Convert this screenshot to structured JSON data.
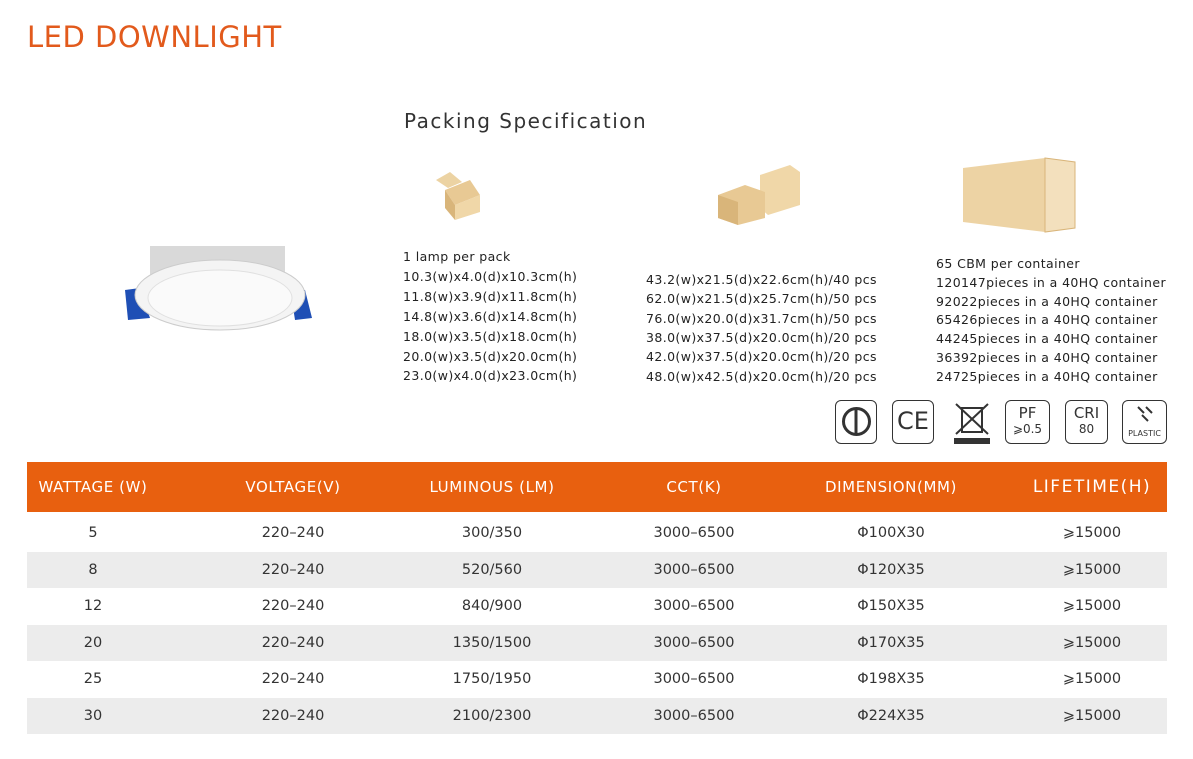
{
  "title": "LED DOWNLIGHT",
  "packing": {
    "title": "Packing Specification",
    "columns": [
      {
        "lines": [
          "1 lamp per pack",
          "10.3(w)x4.0(d)x10.3cm(h)",
          "11.8(w)x3.9(d)x11.8cm(h)",
          "14.8(w)x3.6(d)x14.8cm(h)",
          "18.0(w)x3.5(d)x18.0cm(h)",
          "20.0(w)x3.5(d)x20.0cm(h)",
          "23.0(w)x4.0(d)x23.0cm(h)"
        ]
      },
      {
        "lines": [
          "43.2(w)x21.5(d)x22.6cm(h)/40 pcs",
          "62.0(w)x21.5(d)x25.7cm(h)/50 pcs",
          "76.0(w)x20.0(d)x31.7cm(h)/50 pcs",
          "38.0(w)x37.5(d)x20.0cm(h)/20 pcs",
          "42.0(w)x37.5(d)x20.0cm(h)/20 pcs",
          "48.0(w)x42.5(d)x20.0cm(h)/20 pcs"
        ]
      },
      {
        "lines": [
          "65 CBM per container",
          "120147pieces in a 40HQ container",
          "92022pieces in a 40HQ container",
          "65426pieces in a 40HQ container",
          "44245pieces in a 40HQ container",
          "36392pieces in a 40HQ container",
          "24725pieces in a 40HQ container"
        ]
      }
    ]
  },
  "badges": {
    "ce": "CE",
    "pf": [
      "PF",
      "⩾0.5"
    ],
    "cri": [
      "CRI",
      "80"
    ],
    "plastic": "PLASTIC"
  },
  "table": {
    "headers": [
      "WATTAGE (W)",
      "VOLTAGE(V)",
      "LUMINOUS (LM)",
      "CCT(K)",
      "DIMENSION(MM)",
      "LIFETIME(H)"
    ],
    "rows": [
      [
        "5",
        "220–240",
        "300/350",
        "3000–6500",
        "Φ100X30",
        "⩾15000"
      ],
      [
        "8",
        "220–240",
        "520/560",
        "3000–6500",
        "Φ120X35",
        "⩾15000"
      ],
      [
        "12",
        "220–240",
        "840/900",
        "3000–6500",
        "Φ150X35",
        "⩾15000"
      ],
      [
        "20",
        "220–240",
        "1350/1500",
        "3000–6500",
        "Φ170X35",
        "⩾15000"
      ],
      [
        "25",
        "220–240",
        "1750/1950",
        "3000–6500",
        "Φ198X35",
        "⩾15000"
      ],
      [
        "30",
        "220–240",
        "2100/2300",
        "3000–6500",
        "Φ224X35",
        "⩾15000"
      ]
    ]
  }
}
